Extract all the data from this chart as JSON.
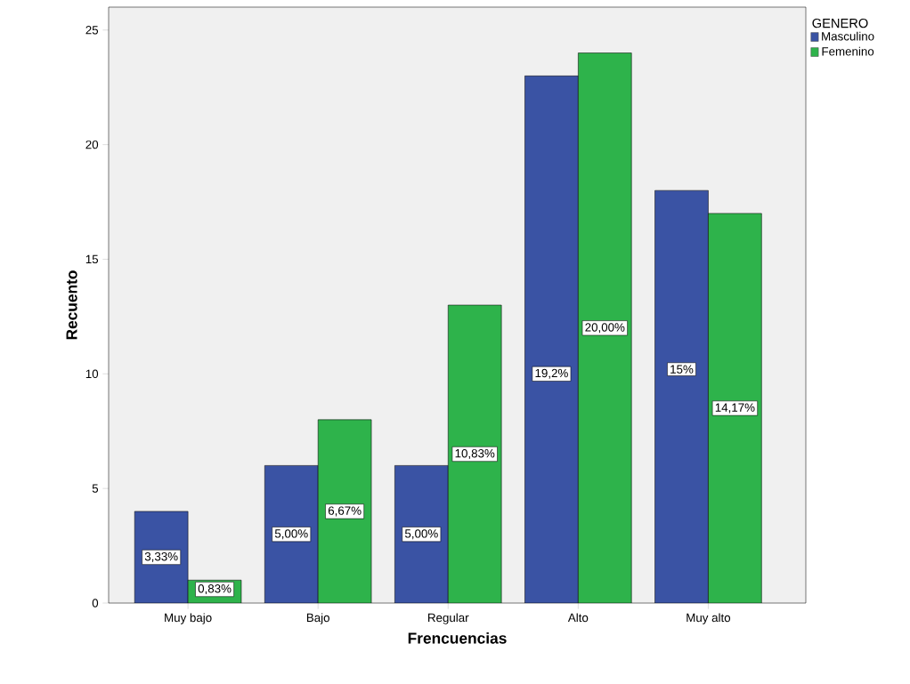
{
  "chart_data": {
    "type": "bar",
    "xlabel": "Frencuencias",
    "ylabel": "Recuento",
    "legend_title": "GENERO",
    "categories": [
      "Muy bajo",
      "Bajo",
      "Regular",
      "Alto",
      "Muy alto"
    ],
    "series": [
      {
        "name": "Masculino",
        "color": "#3a53a4",
        "values": [
          4,
          6,
          6,
          23,
          18
        ]
      },
      {
        "name": "Femenino",
        "color": "#2eb34b",
        "values": [
          1,
          8,
          13,
          24,
          17
        ]
      }
    ],
    "annotations": [
      {
        "text": "3,33%",
        "x": "Muy bajo",
        "y": 2
      },
      {
        "text": "0,83%",
        "x": "Muy bajo",
        "y": 0.6
      },
      {
        "text": "5,00%",
        "x": "Bajo",
        "y": 3
      },
      {
        "text": "6,67%",
        "x": "Bajo",
        "y": 4
      },
      {
        "text": "5,00%",
        "x": "Regular",
        "y": 3
      },
      {
        "text": "10,83%",
        "x": "Regular",
        "y": 6.5
      },
      {
        "text": "19,2%",
        "x": "Alto",
        "y": 10
      },
      {
        "text": "20,00%",
        "x": "Alto",
        "y": 12
      },
      {
        "text": "15%",
        "x": "Muy alto",
        "y": 10.2
      },
      {
        "text": "14,17%",
        "x": "Muy alto",
        "y": 8.5
      }
    ],
    "ylim": [
      0,
      26
    ],
    "yticks": [
      0,
      5,
      10,
      15,
      20,
      25
    ],
    "grid": false,
    "legend": "top right"
  }
}
